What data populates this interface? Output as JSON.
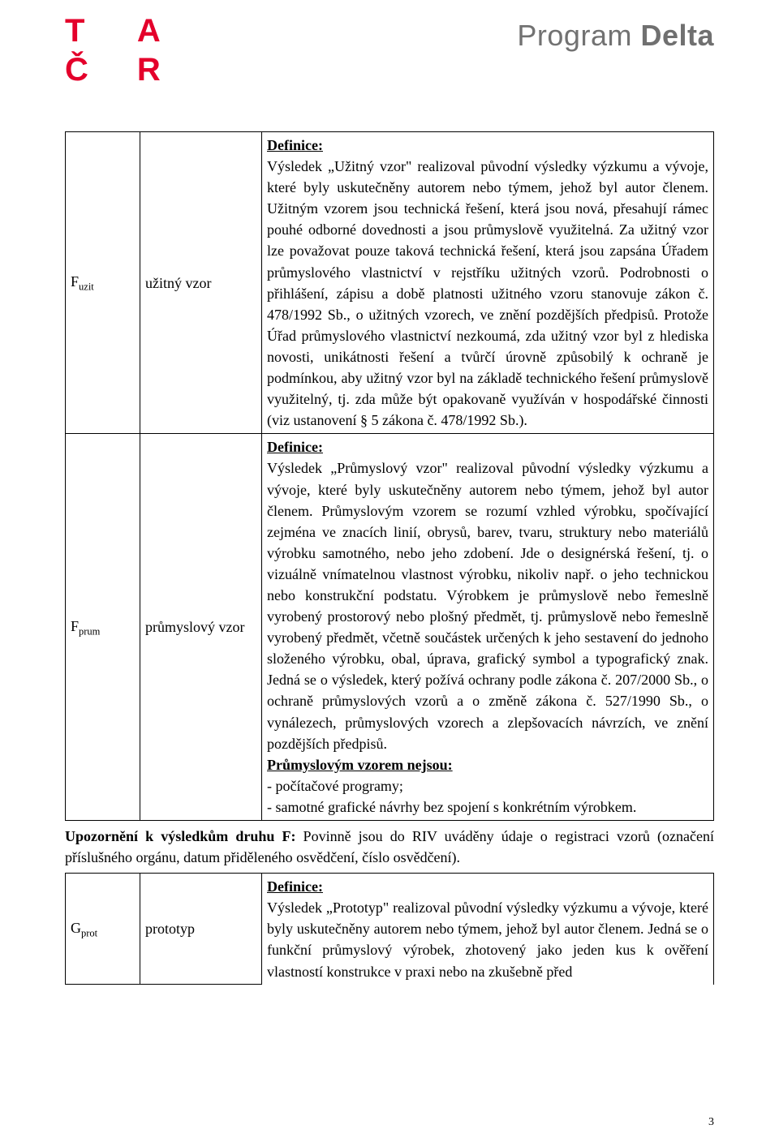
{
  "header": {
    "tacr_letters": [
      "T",
      "A",
      "Č",
      "R"
    ],
    "program_text_light": "Program",
    "program_text_bold": "Delta"
  },
  "colors": {
    "brand_red": "#e4002b",
    "program_gray": "#727272",
    "text": "#000000",
    "background": "#ffffff"
  },
  "typography": {
    "body_family": "Times New Roman",
    "body_size_pt": 13.5,
    "logo_family": "Arial",
    "logo_size_pt": 30,
    "program_size_pt": 27
  },
  "table": {
    "rows": [
      {
        "code_main": "F",
        "code_sub": "uzit",
        "name": "užitný vzor",
        "definition_label": "Definice:",
        "definition_text": "Výsledek „Užitný vzor\" realizoval původní výsledky výzkumu a vývoje, které byly uskutečněny autorem nebo týmem, jehož byl autor členem. Užitným vzorem jsou technická řešení, která jsou nová, přesahují rámec pouhé odborné dovednosti a jsou průmyslově využitelná. Za užitný vzor lze považovat pouze taková technická řešení, která jsou zapsána Úřadem průmyslového vlastnictví v rejstříku užitných vzorů. Podrobnosti o přihlášení, zápisu a době platnosti užitného vzoru stanovuje zákon č. 478/1992 Sb., o užitných vzorech, ve znění pozdějších předpisů. Protože Úřad průmyslového vlastnictví nezkoumá, zda užitný vzor byl z hlediska novosti, unikátnosti řešení a tvůrčí úrovně způsobilý k ochraně je podmínkou, aby užitný vzor byl na základě technického řešení průmyslově využitelný, tj. zda může být opakovaně využíván v hospodářské činnosti (viz ustanovení § 5 zákona č. 478/1992 Sb.)."
      },
      {
        "code_main": "F",
        "code_sub": "prum",
        "name": "průmyslový vzor",
        "definition_label": "Definice:",
        "definition_text": "Výsledek „Průmyslový vzor\" realizoval původní výsledky výzkumu a vývoje, které byly uskutečněny autorem nebo týmem, jehož byl autor členem. Průmyslovým vzorem se rozumí vzhled výrobku, spočívající zejména ve znacích linií, obrysů, barev, tvaru, struktury nebo materiálů výrobku samotného, nebo jeho zdobení. Jde o designérská řešení, tj. o vizuálně vnímatelnou vlastnost výrobku, nikoliv např. o jeho technickou nebo konstrukční podstatu. Výrobkem je průmyslově nebo řemeslně vyrobený prostorový nebo plošný předmět, tj. průmyslově nebo řemeslně vyrobený předmět, včetně součástek určených k jeho sestavení do jednoho složeného výrobku, obal, úprava, grafický symbol a typografický znak. Jedná se o výsledek, který požívá ochrany podle zákona č. 207/2000 Sb., o ochraně průmyslových vzorů a o změně zákona č. 527/1990 Sb., o vynálezech, průmyslových vzorech a zlepšovacích návrzích, ve znění pozdějších předpisů.",
        "exclusion_label": "Průmyslovým vzorem nejsou:",
        "exclusion_item1": "- počítačové programy;",
        "exclusion_item2": "- samotné grafické návrhy bez spojení s konkrétním výrobkem."
      }
    ]
  },
  "notice": {
    "strong": "Upozornění k výsledkům druhu F:",
    "text": " Povinně jsou do RIV uváděny údaje o registraci vzorů (označení příslušného orgánu, datum přiděleného osvědčení, číslo osvědčení)."
  },
  "table2": {
    "code_main": "G",
    "code_sub": "prot",
    "name": "prototyp",
    "definition_label": "Definice:",
    "definition_text": "Výsledek „Prototyp\" realizoval původní výsledky výzkumu a vývoje, které byly uskutečněny autorem nebo týmem, jehož byl autor členem. Jedná se o funkční průmyslový výrobek, zhotovený jako jeden kus k ověření vlastností konstrukce v praxi nebo na zkušebně před"
  },
  "page_number": "3"
}
